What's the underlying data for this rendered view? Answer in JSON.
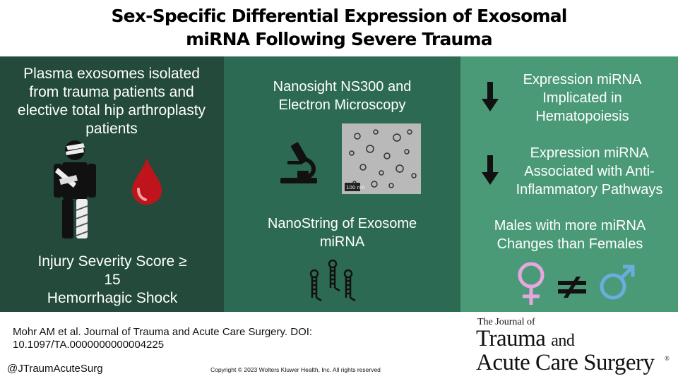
{
  "title": {
    "line1": "Sex-Specific Differential Expression of Exosomal",
    "line2": "miRNA Following Severe Trauma"
  },
  "panel1": {
    "text_lines": [
      "Plasma exosomes isolated",
      "from trauma patients and",
      "elective total hip arthroplasty",
      "patients"
    ],
    "bottom_lines": [
      "Injury Severity Score ≥",
      "15",
      "Hemorrhagic Shock"
    ],
    "icons": [
      "injured-patient-icon",
      "blood-drop-icon"
    ]
  },
  "panel2": {
    "top_lines": [
      "Nanosight NS300 and",
      "Electron Microscopy"
    ],
    "mid_lines": [
      "NanoString of Exosome",
      "miRNA"
    ],
    "scale_label": "100 nm",
    "icons": [
      "microscope-icon",
      "electron-micrograph",
      "mirna-hairpin-icon"
    ]
  },
  "panel3": {
    "item1_lines": [
      "Expression miRNA",
      "Implicated in",
      "Hematopoiesis"
    ],
    "item2_lines": [
      "Expression miRNA",
      "Associated with Anti-",
      "Inflammatory Pathways"
    ],
    "item3_lines": [
      "Males with more miRNA",
      "Changes than Females"
    ],
    "icons": [
      "down-arrow-icon",
      "female-symbol-icon",
      "not-equal-icon",
      "male-symbol-icon"
    ]
  },
  "footer": {
    "citation_line1": "Mohr AM et al. Journal of Trauma and Acute Care Surgery. DOI:",
    "citation_line2": "10.1097/TA.0000000000004225",
    "handle": "@JTraumAcuteSurg",
    "copyright": "Copyright © 2023  Wolters Kluwer Health, Inc. All rights reserved",
    "journal_small": "The Journal of",
    "journal_word1": "Trauma",
    "journal_and": "and",
    "journal_line2": "Acute Care Surgery",
    "registered": "®"
  },
  "colors": {
    "panel1": "#234a3b",
    "panel2": "#2d6a53",
    "panel3": "#4a9a78",
    "blood": "#c0141c",
    "female": "#e8a6e0",
    "male": "#6aaee0"
  }
}
